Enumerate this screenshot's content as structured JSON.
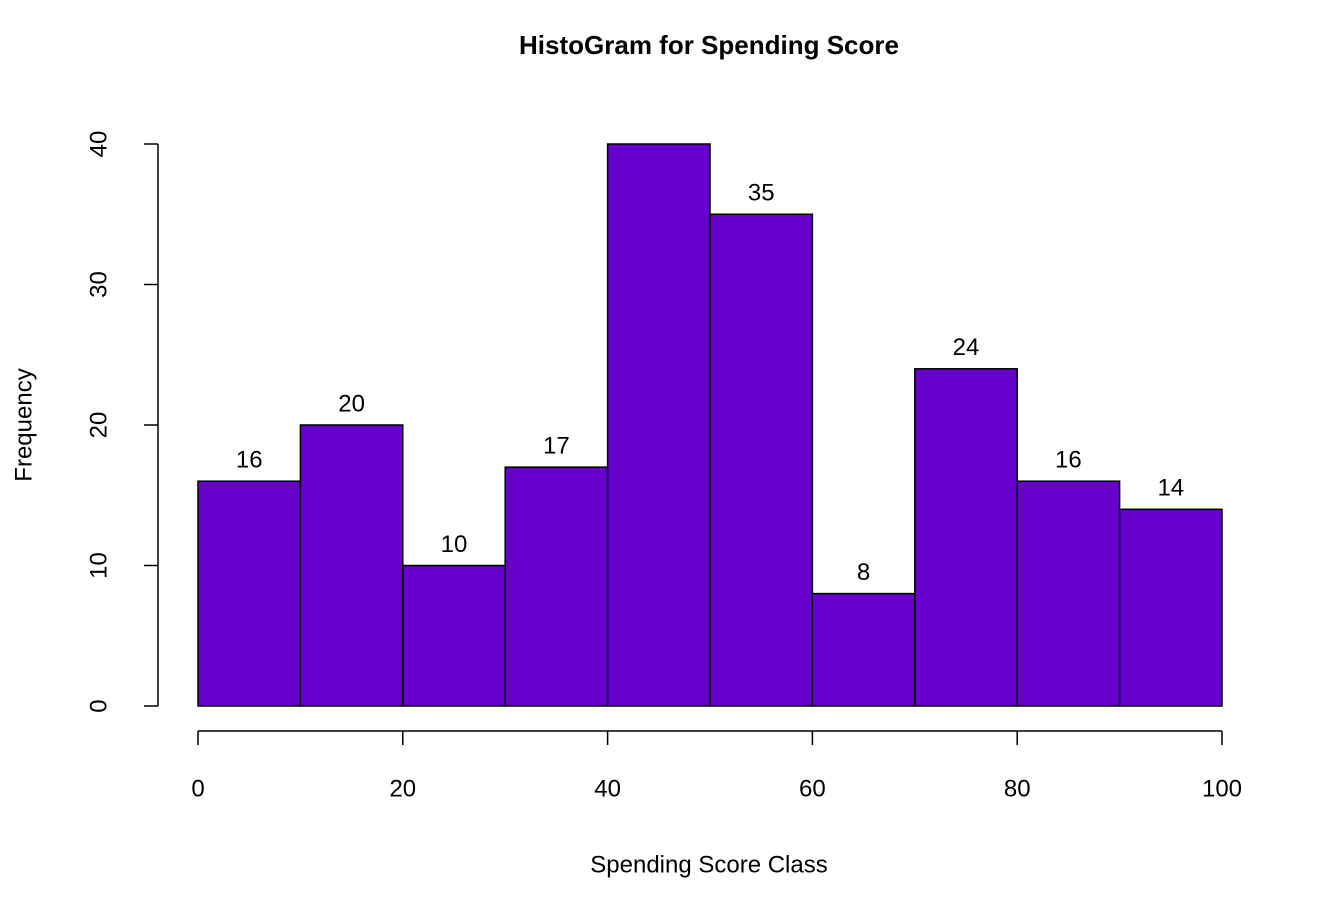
{
  "chart_data": {
    "type": "histogram",
    "title": "HistoGram for Spending Score",
    "x_label": "Spending Score Class",
    "y_label": "Frequency",
    "bins": [
      0,
      10,
      20,
      30,
      40,
      50,
      60,
      70,
      80,
      90,
      100
    ],
    "values": [
      16,
      20,
      10,
      17,
      40,
      35,
      8,
      24,
      16,
      14
    ],
    "color": "#6600cc",
    "xlim": [
      0,
      100
    ],
    "xticks": [
      0,
      20,
      40,
      60,
      80,
      100
    ],
    "ylim": [
      0,
      40
    ],
    "yticks": [
      0,
      10,
      20,
      30,
      40
    ]
  }
}
